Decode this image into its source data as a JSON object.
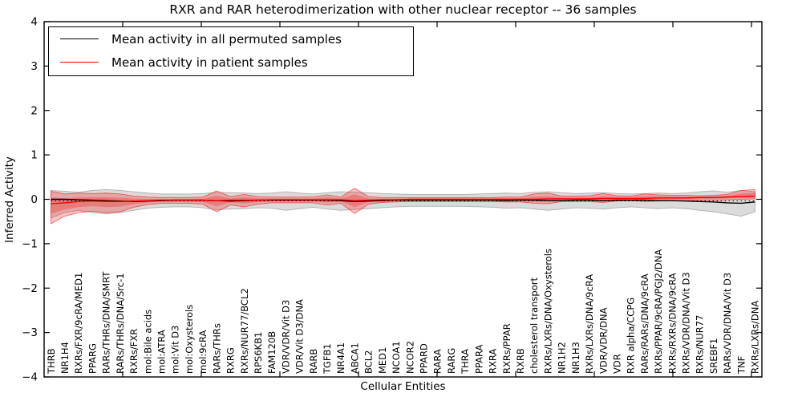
{
  "title": "RXR and RAR heterodimerization with other nuclear receptor -- 36 samples",
  "axes": {
    "ylabel": "Inferred Activity",
    "xlabel": "Cellular Entities",
    "yticks": [
      4,
      3,
      2,
      1,
      0,
      -1,
      -2,
      -3,
      -4
    ],
    "ylim": [
      -4,
      4
    ]
  },
  "legend": {
    "items": [
      {
        "label": "Mean activity in all permuted samples",
        "color": "#000000"
      },
      {
        "label": "Mean activity in patient samples",
        "color": "#ff0000"
      }
    ],
    "position": "upper left"
  },
  "colors": {
    "permuted_line": "#000000",
    "patient_line": "#ff0000",
    "permuted_band": "#bdbdbd",
    "patient_band": "#ff9999",
    "frame": "#000000",
    "background": "#ffffff"
  },
  "chart_data": {
    "type": "line",
    "title": "RXR and RAR heterodimerization with other nuclear receptor -- 36 samples",
    "xlabel": "Cellular Entities",
    "ylabel": "Inferred Activity",
    "ylim": [
      -4,
      4
    ],
    "grid": false,
    "legend_position": "upper left",
    "categories": [
      "THRB",
      "NR1H4",
      "RXRs/FXR/9cRA/MED1",
      "PPARG",
      "RARs/THRs/DNA/SMRT",
      "RARs/THRs/DNA/Src-1",
      "RXRs/FXR",
      "mol:Bile acids",
      "mol:ATRA",
      "mol:Vit D3",
      "mol:Oxysterols",
      "mol:9cRA",
      "RARs/THRs",
      "RXRG",
      "RXRs/NUR77/BCL2",
      "RPS6KB1",
      "FAM120B",
      "VDR/VDR/Vit D3",
      "VDR/Vit D3/DNA",
      "RARB",
      "TGFB1",
      "NR4A1",
      "ABCA1",
      "BCL2",
      "MED1",
      "NCOA1",
      "NCOR2",
      "PPARD",
      "RARA",
      "RARG",
      "THRA",
      "PPARA",
      "RXRA",
      "RXRs/PPAR",
      "RXRB",
      "cholesterol transport",
      "RXRs/LXRs/DNA/Oxysterols",
      "NR1H2",
      "NR1H3",
      "RXRs/LXRs/DNA/9cRA",
      "VDR/VDR/DNA",
      "VDR",
      "RXR alpha/CCPG",
      "RARs/RARs/DNA/9cRA",
      "RXRs/PPAR/9cRA/PGJ2/DNA",
      "RXRs/RXRs/DNA/9cRA",
      "RXRs/VDR/DNA/Vit D3",
      "RXRs/NUR77",
      "SREBF1",
      "RARs/VDR/DNA/Vit D3",
      "TNF",
      "RXRs/LXRs/DNA"
    ],
    "series": [
      {
        "name": "Mean activity in all permuted samples",
        "color": "#000000",
        "values": [
          0.0,
          0.0,
          -0.01,
          -0.02,
          -0.03,
          -0.04,
          -0.05,
          -0.04,
          -0.03,
          -0.02,
          -0.02,
          -0.02,
          -0.03,
          -0.04,
          -0.03,
          -0.02,
          -0.02,
          -0.02,
          -0.02,
          -0.02,
          -0.02,
          -0.03,
          -0.05,
          -0.04,
          -0.03,
          -0.02,
          -0.02,
          -0.02,
          -0.02,
          -0.02,
          -0.02,
          -0.02,
          -0.02,
          -0.03,
          -0.02,
          -0.02,
          -0.03,
          -0.03,
          -0.02,
          -0.02,
          -0.03,
          -0.02,
          -0.02,
          -0.02,
          -0.03,
          -0.03,
          -0.04,
          -0.05,
          -0.06,
          -0.08,
          -0.09,
          -0.06
        ]
      },
      {
        "name": "Mean activity in patient samples",
        "color": "#ff0000",
        "values": [
          -0.1,
          -0.08,
          -0.05,
          -0.04,
          -0.05,
          -0.05,
          -0.04,
          -0.03,
          -0.02,
          -0.02,
          -0.02,
          -0.02,
          -0.03,
          -0.02,
          -0.02,
          -0.02,
          -0.01,
          -0.01,
          -0.01,
          -0.01,
          -0.01,
          -0.01,
          -0.03,
          -0.02,
          -0.01,
          -0.01,
          0.0,
          0.0,
          0.0,
          0.0,
          0.0,
          0.0,
          0.0,
          0.0,
          0.0,
          0.0,
          0.01,
          0.01,
          0.01,
          0.01,
          0.02,
          0.02,
          0.02,
          0.02,
          0.03,
          0.03,
          0.03,
          0.04,
          0.04,
          0.05,
          0.06,
          0.07
        ]
      }
    ],
    "bands": [
      {
        "name": "permuted samples range",
        "color": "#bdbdbd",
        "upper": [
          0.2,
          0.18,
          0.16,
          0.2,
          0.22,
          0.2,
          0.17,
          0.14,
          0.12,
          0.12,
          0.12,
          0.13,
          0.16,
          0.15,
          0.14,
          0.13,
          0.14,
          0.17,
          0.14,
          0.12,
          0.15,
          0.17,
          0.16,
          0.15,
          0.13,
          0.12,
          0.11,
          0.11,
          0.11,
          0.11,
          0.11,
          0.12,
          0.13,
          0.14,
          0.13,
          0.16,
          0.17,
          0.15,
          0.13,
          0.14,
          0.15,
          0.13,
          0.12,
          0.13,
          0.14,
          0.13,
          0.14,
          0.17,
          0.19,
          0.16,
          0.2,
          0.17
        ],
        "lower": [
          -0.42,
          -0.3,
          -0.25,
          -0.3,
          -0.33,
          -0.3,
          -0.25,
          -0.2,
          -0.18,
          -0.17,
          -0.17,
          -0.19,
          -0.24,
          -0.22,
          -0.21,
          -0.19,
          -0.2,
          -0.25,
          -0.21,
          -0.18,
          -0.22,
          -0.25,
          -0.23,
          -0.21,
          -0.19,
          -0.17,
          -0.16,
          -0.16,
          -0.16,
          -0.16,
          -0.16,
          -0.17,
          -0.18,
          -0.2,
          -0.19,
          -0.22,
          -0.25,
          -0.22,
          -0.19,
          -0.2,
          -0.22,
          -0.19,
          -0.17,
          -0.19,
          -0.21,
          -0.19,
          -0.21,
          -0.25,
          -0.28,
          -0.33,
          -0.38,
          -0.28
        ]
      },
      {
        "name": "patient samples range",
        "color": "#ff9999",
        "upper": [
          0.18,
          0.12,
          0.14,
          0.13,
          0.14,
          0.12,
          0.07,
          0.05,
          0.04,
          0.04,
          0.04,
          0.05,
          0.19,
          0.06,
          0.11,
          0.06,
          0.05,
          0.05,
          0.05,
          0.05,
          0.1,
          0.05,
          0.25,
          0.06,
          0.04,
          0.04,
          0.04,
          0.04,
          0.04,
          0.04,
          0.04,
          0.04,
          0.04,
          0.05,
          0.05,
          0.12,
          0.14,
          0.07,
          0.07,
          0.08,
          0.13,
          0.08,
          0.07,
          0.12,
          0.1,
          0.09,
          0.09,
          0.08,
          0.09,
          0.11,
          0.2,
          0.22
        ],
        "lower": [
          -0.55,
          -0.38,
          -0.3,
          -0.27,
          -0.3,
          -0.28,
          -0.18,
          -0.12,
          -0.09,
          -0.09,
          -0.09,
          -0.11,
          -0.28,
          -0.13,
          -0.17,
          -0.11,
          -0.08,
          -0.08,
          -0.08,
          -0.08,
          -0.13,
          -0.09,
          -0.32,
          -0.11,
          -0.07,
          -0.06,
          -0.05,
          -0.05,
          -0.05,
          -0.05,
          -0.05,
          -0.05,
          -0.05,
          -0.06,
          -0.06,
          -0.09,
          -0.1,
          -0.05,
          -0.05,
          -0.05,
          -0.07,
          -0.04,
          -0.03,
          -0.05,
          -0.04,
          -0.03,
          -0.03,
          -0.02,
          -0.02,
          -0.01,
          0.0,
          0.01
        ]
      }
    ]
  }
}
